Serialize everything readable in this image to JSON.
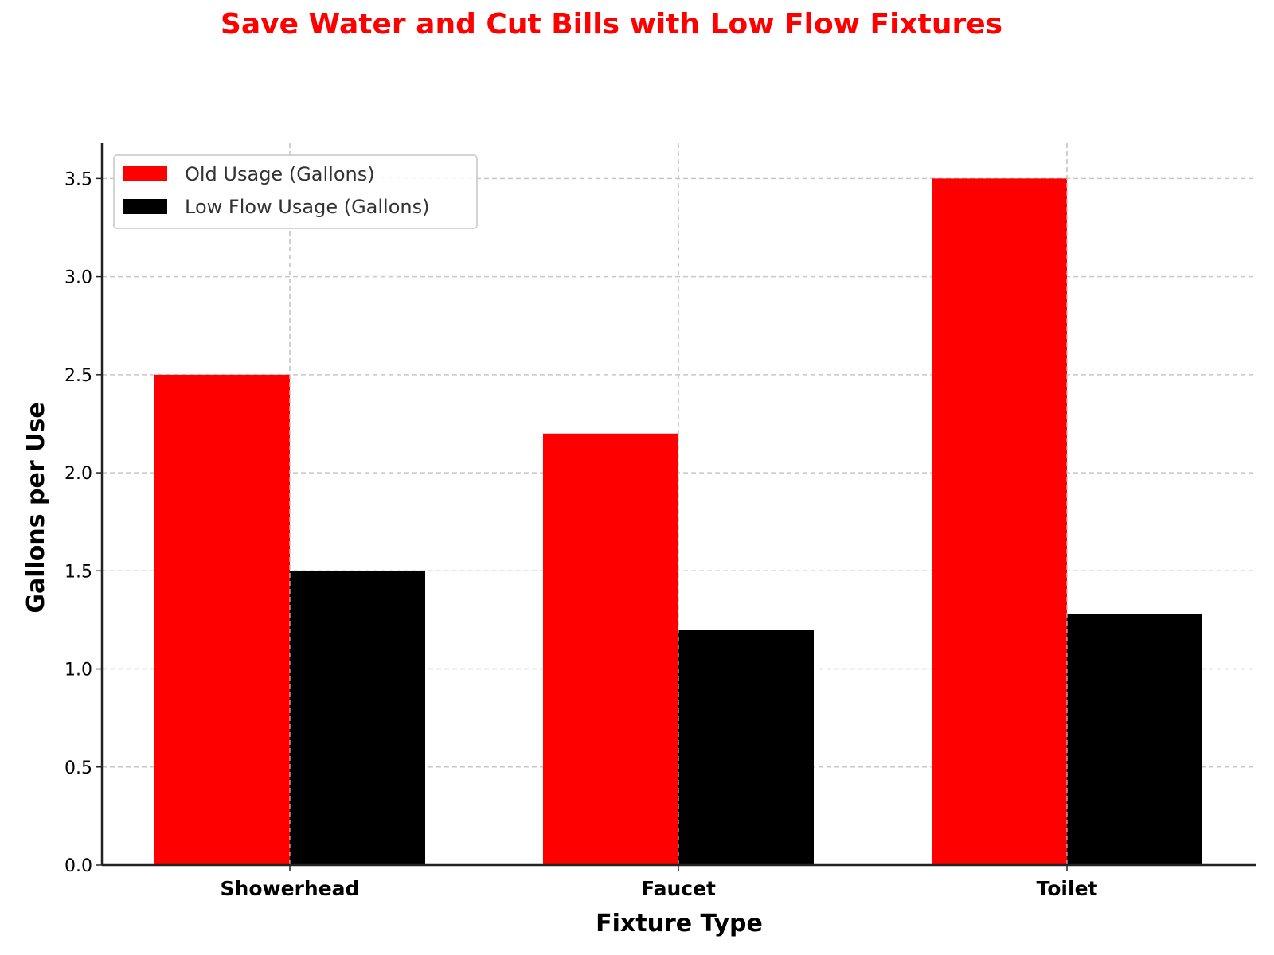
{
  "chart_data": {
    "type": "bar",
    "title": "Save Water and Cut Bills with Low Flow Fixtures",
    "xlabel": "Fixture Type",
    "ylabel": "Gallons per Use",
    "categories": [
      "Showerhead",
      "Faucet",
      "Toilet"
    ],
    "series": [
      {
        "name": "Old Usage (Gallons)",
        "color": "#ff0000",
        "values": [
          2.5,
          2.2,
          3.5
        ]
      },
      {
        "name": "Low Flow Usage (Gallons)",
        "color": "#000000",
        "values": [
          1.5,
          1.2,
          1.28
        ]
      }
    ],
    "ylim": [
      0,
      3.68
    ],
    "yticks": [
      "0.0",
      "0.5",
      "1.0",
      "1.5",
      "2.0",
      "2.5",
      "3.0",
      "3.5"
    ],
    "grid": true,
    "legend": "top-left",
    "title_color": "#ff0000"
  }
}
